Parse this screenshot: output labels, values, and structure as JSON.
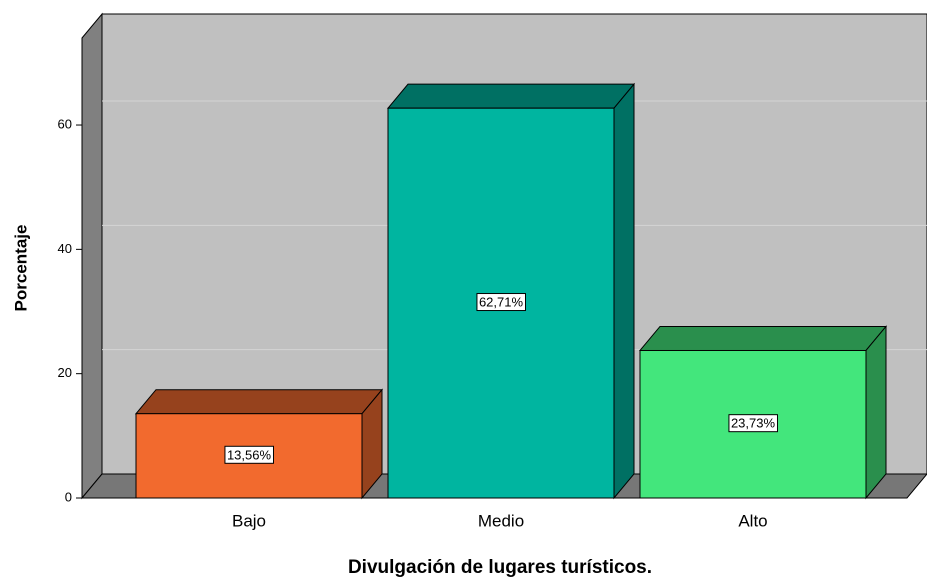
{
  "chart_data": {
    "type": "bar",
    "xlabel": "Divulgación de lugares turísticos.",
    "ylabel": "Porcentaje",
    "categories": [
      "Bajo",
      "Medio",
      "Alto"
    ],
    "values": [
      13.56,
      62.71,
      23.73
    ],
    "value_labels": [
      "13,56%",
      "62,71%",
      "23,73%"
    ],
    "colors": [
      "#f26a2e",
      "#00b5a0",
      "#43e67c"
    ],
    "ylim": [
      0,
      74
    ],
    "yticks": [
      0,
      20,
      40,
      60
    ],
    "grid": true
  }
}
